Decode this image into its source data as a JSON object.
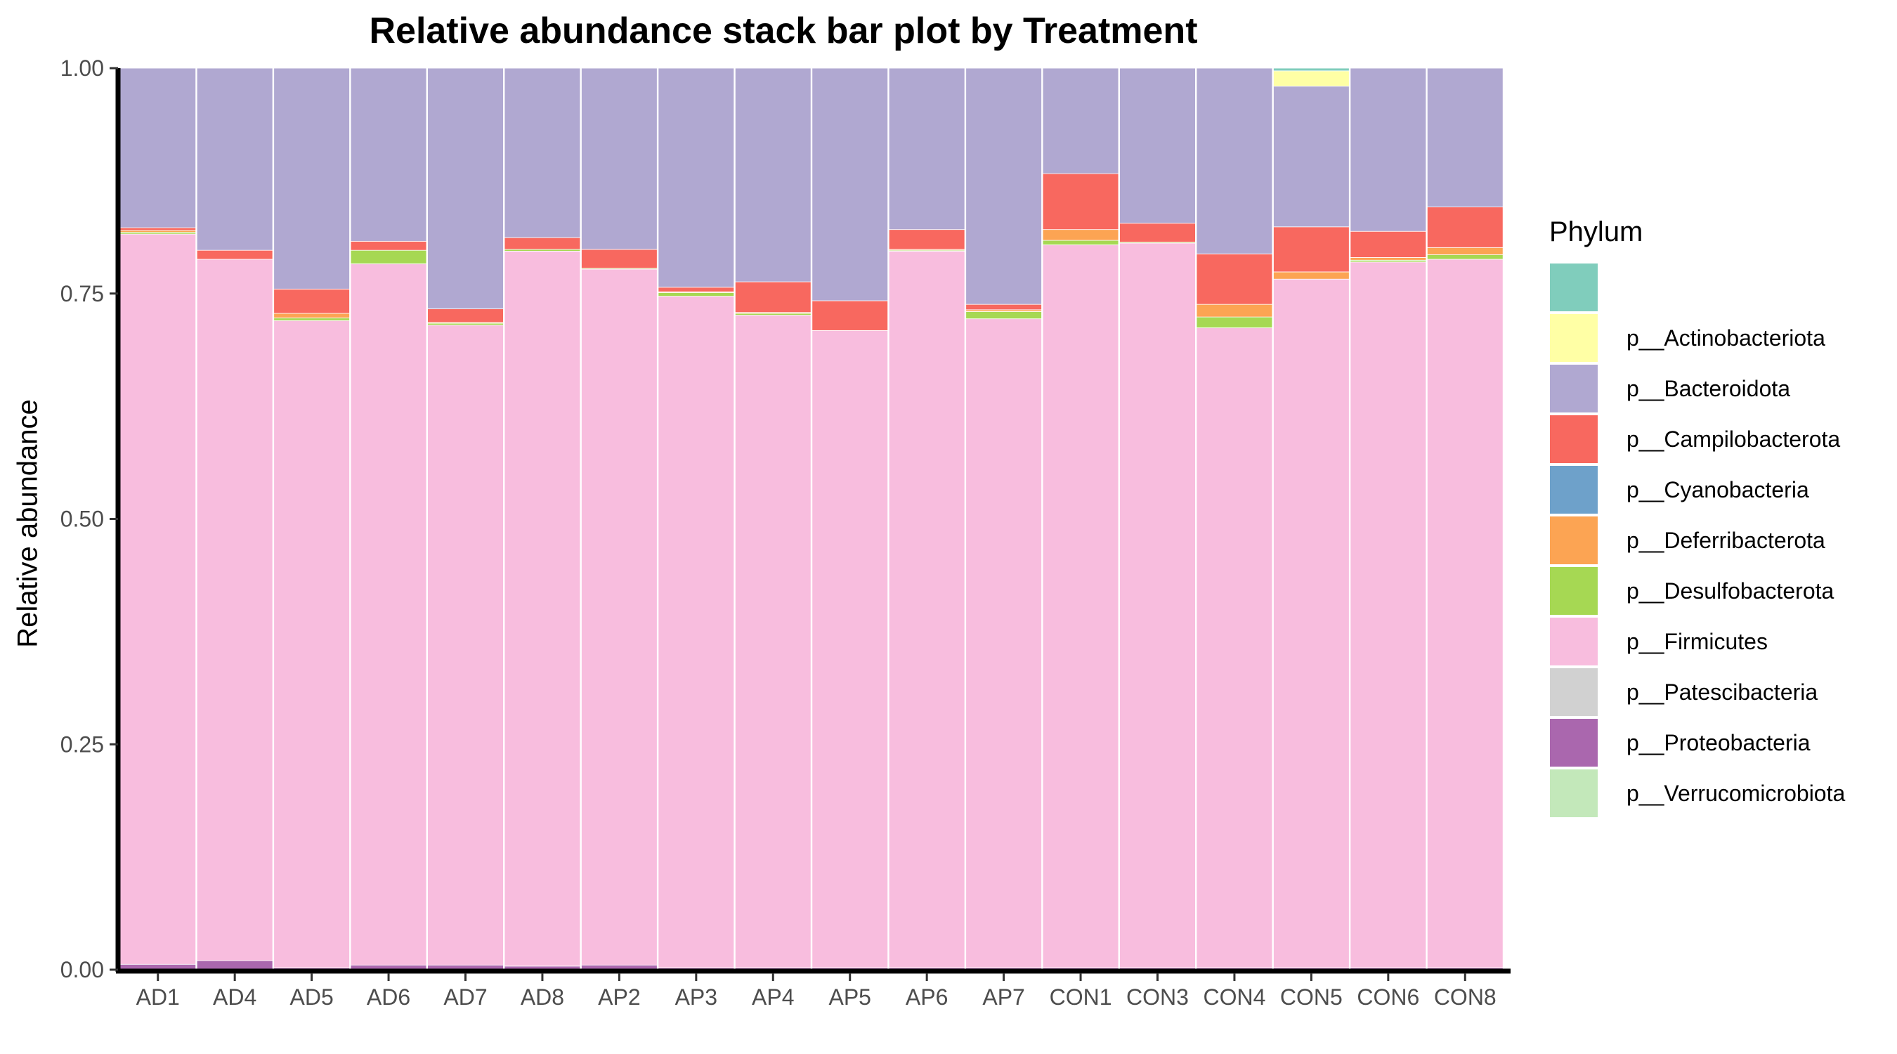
{
  "chart_data": {
    "type": "bar",
    "stacked": true,
    "title": "Relative abundance stack bar plot by Treatment",
    "xlabel": "",
    "ylabel": "Relative abundance",
    "ylim": [
      0,
      1
    ],
    "y_ticks": [
      "0.00",
      "0.25",
      "0.50",
      "0.75",
      "1.00"
    ],
    "grid": false,
    "legend_title": "Phylum",
    "legend_position": "right",
    "categories": [
      "AD1",
      "AD4",
      "AD5",
      "AD6",
      "AD7",
      "AD8",
      "AP2",
      "AP3",
      "AP4",
      "AP5",
      "AP6",
      "AP7",
      "CON1",
      "CON3",
      "CON4",
      "CON5",
      "CON6",
      "CON8"
    ],
    "series": [
      {
        "name": "p__Proteobacteria",
        "color": "#AA67AE",
        "values": [
          0.006,
          0.01,
          0.002,
          0.005,
          0.005,
          0.004,
          0.005,
          0.002,
          0.002,
          0.002,
          0.002,
          0.002,
          0.002,
          0.002,
          0.002,
          0.002,
          0.002,
          0.002
        ]
      },
      {
        "name": "p__Firmicutes",
        "color": "#F8BDDE",
        "values": [
          0.81,
          0.778,
          0.718,
          0.778,
          0.71,
          0.793,
          0.772,
          0.745,
          0.724,
          0.707,
          0.795,
          0.72,
          0.802,
          0.804,
          0.71,
          0.764,
          0.783,
          0.786
        ]
      },
      {
        "name": "p__Desulfobacterota",
        "color": "#A6D853",
        "values": [
          0.002,
          0.0,
          0.003,
          0.015,
          0.002,
          0.002,
          0.001,
          0.004,
          0.002,
          0.0,
          0.001,
          0.008,
          0.005,
          0.001,
          0.012,
          0.0,
          0.002,
          0.005
        ]
      },
      {
        "name": "p__Deferribacterota",
        "color": "#FCA453",
        "values": [
          0.002,
          0.0,
          0.005,
          0.0,
          0.001,
          0.0,
          0.0,
          0.001,
          0.001,
          0.0,
          0.001,
          0.002,
          0.012,
          0.0,
          0.014,
          0.008,
          0.003,
          0.008
        ]
      },
      {
        "name": "p__Campilobacterota",
        "color": "#F8685F",
        "values": [
          0.003,
          0.01,
          0.027,
          0.01,
          0.015,
          0.013,
          0.021,
          0.005,
          0.034,
          0.033,
          0.022,
          0.006,
          0.062,
          0.021,
          0.056,
          0.05,
          0.029,
          0.045
        ]
      },
      {
        "name": "p__Bacteroidota",
        "color": "#B0A8D1",
        "values": [
          0.177,
          0.202,
          0.245,
          0.192,
          0.267,
          0.188,
          0.201,
          0.243,
          0.237,
          0.258,
          0.179,
          0.262,
          0.117,
          0.172,
          0.206,
          0.156,
          0.181,
          0.154
        ]
      },
      {
        "name": "p__Actinobacteriota",
        "color": "#FFFFA5",
        "values": [
          0,
          0,
          0,
          0,
          0,
          0,
          0,
          0,
          0,
          0,
          0,
          0,
          0,
          0,
          0,
          0.017,
          0,
          0
        ]
      },
      {
        "name": "",
        "color": "#80CDBC",
        "values": [
          0,
          0,
          0,
          0,
          0,
          0,
          0,
          0,
          0,
          0,
          0,
          0,
          0,
          0,
          0,
          0.003,
          0,
          0
        ]
      }
    ],
    "legend": [
      {
        "label": "",
        "color": "#80CDBC"
      },
      {
        "label": "p__Actinobacteriota",
        "color": "#FFFFA5"
      },
      {
        "label": "p__Bacteroidota",
        "color": "#B0A8D1"
      },
      {
        "label": "p__Campilobacterota",
        "color": "#F8685F"
      },
      {
        "label": "p__Cyanobacteria",
        "color": "#6EA1CA"
      },
      {
        "label": "p__Deferribacterota",
        "color": "#FCA453"
      },
      {
        "label": "p__Desulfobacterota",
        "color": "#A6D853"
      },
      {
        "label": "p__Firmicutes",
        "color": "#F8BDDE"
      },
      {
        "label": "p__Patescibacteria",
        "color": "#D1D1D1"
      },
      {
        "label": "p__Proteobacteria",
        "color": "#AA67AE"
      },
      {
        "label": "p__Verrucomicrobiota",
        "color": "#C3E8BA"
      }
    ]
  }
}
